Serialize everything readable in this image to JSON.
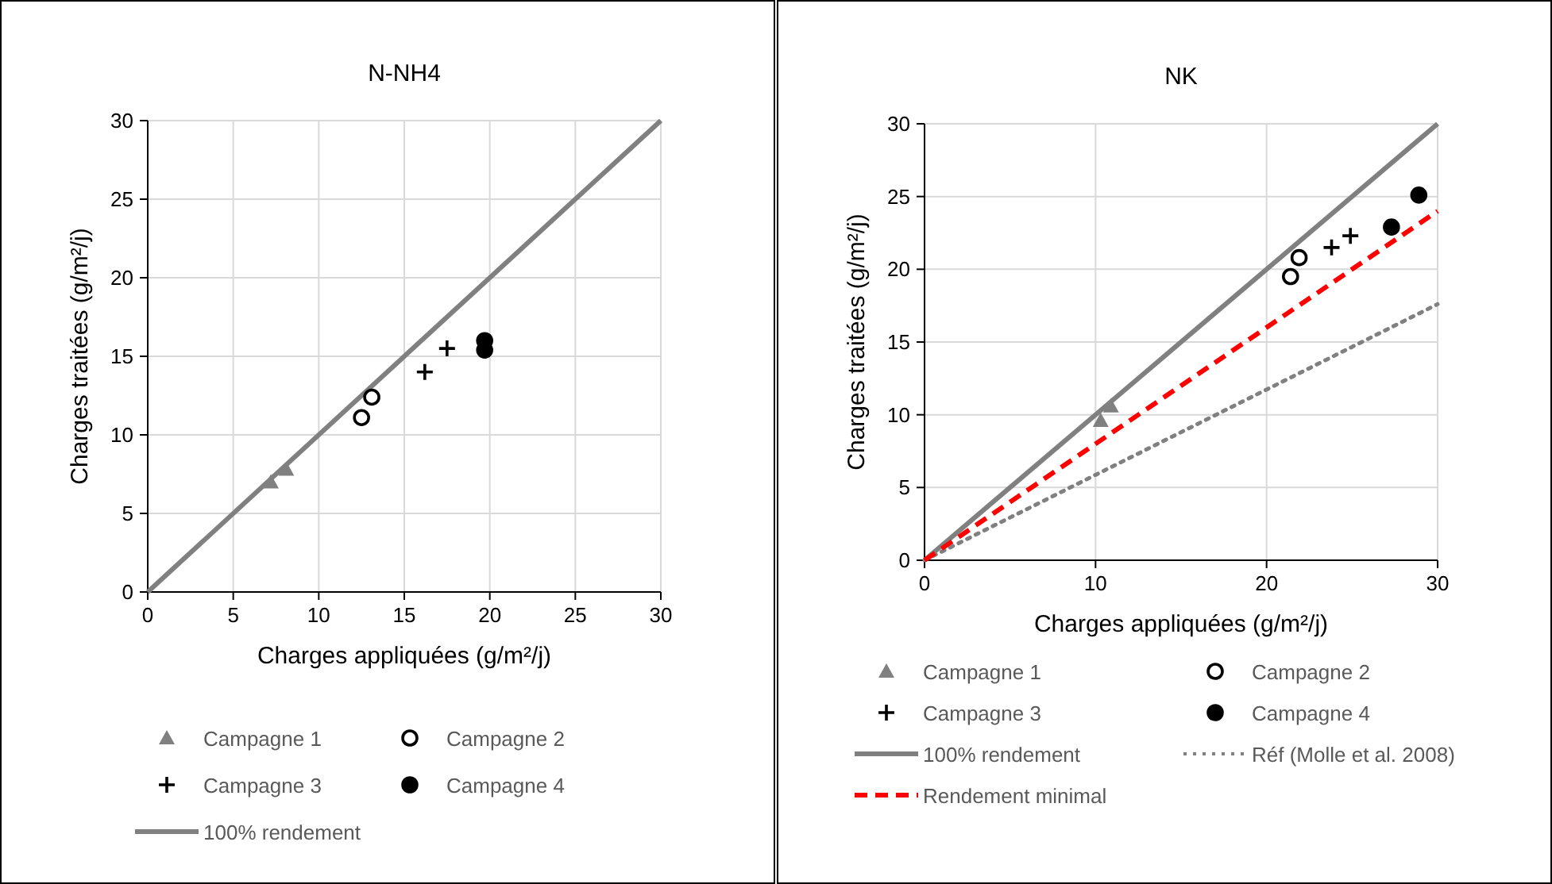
{
  "chart_data": [
    {
      "type": "scatter",
      "title": "N-NH4",
      "xlabel": "Charges appliquées (g/m²/j)",
      "ylabel": "Charges traitées (g/m²/j)",
      "xlim": [
        0,
        30
      ],
      "ylim": [
        0,
        30
      ],
      "xticks": [
        0,
        5,
        10,
        15,
        20,
        25,
        30
      ],
      "yticks": [
        0,
        5,
        10,
        15,
        20,
        25,
        30
      ],
      "grid": true,
      "legend": "bottom",
      "series": [
        {
          "name": "Campagne 1",
          "marker": "triangle",
          "color": "#808080",
          "x": [
            7.2,
            8.1
          ],
          "values": [
            7.0,
            7.8
          ]
        },
        {
          "name": "Campagne 2",
          "marker": "circle",
          "color": "#000000",
          "x": [
            12.5,
            13.1
          ],
          "values": [
            11.1,
            12.4
          ]
        },
        {
          "name": "Campagne 3",
          "marker": "cross",
          "color": "#000000",
          "x": [
            16.2,
            17.5
          ],
          "values": [
            14.0,
            15.5
          ]
        },
        {
          "name": "Campagne 4",
          "marker": "circle",
          "color": "#000000",
          "x": [
            19.7,
            19.7
          ],
          "values": [
            16.0,
            15.4
          ]
        },
        {
          "name": "100% rendement",
          "type": "line",
          "line_style": "solid",
          "color": "#808080",
          "x": [
            0,
            30
          ],
          "values": [
            0,
            30
          ]
        }
      ]
    },
    {
      "type": "scatter",
      "title": "NK",
      "xlabel": "Charges appliquées (g/m²/j)",
      "ylabel": "Charges traitées (g/m²/j)",
      "xlim": [
        0,
        30
      ],
      "ylim": [
        0,
        30
      ],
      "xticks": [
        0,
        10,
        20,
        30
      ],
      "yticks": [
        0,
        5,
        10,
        15,
        20,
        25,
        30
      ],
      "grid": true,
      "legend": "bottom",
      "series": [
        {
          "name": "Campagne 1",
          "marker": "triangle",
          "color": "#808080",
          "x": [
            10.3,
            10.9
          ],
          "values": [
            9.6,
            10.6
          ]
        },
        {
          "name": "Campagne 2",
          "marker": "circle",
          "color": "#000000",
          "x": [
            21.4,
            21.9
          ],
          "values": [
            19.5,
            20.8
          ]
        },
        {
          "name": "Campagne 3",
          "marker": "cross",
          "color": "#000000",
          "x": [
            23.8,
            24.9
          ],
          "values": [
            21.5,
            22.3
          ]
        },
        {
          "name": "Campagne 4",
          "marker": "circle",
          "color": "#000000",
          "x": [
            27.3,
            28.9
          ],
          "values": [
            22.9,
            25.1
          ]
        },
        {
          "name": "100% rendement",
          "type": "line",
          "line_style": "solid",
          "color": "#808080",
          "x": [
            0,
            30
          ],
          "values": [
            0,
            30
          ]
        },
        {
          "name": "Réf (Molle et al. 2008)",
          "type": "line",
          "line_style": "dotted",
          "color": "#808080",
          "x": [
            0,
            30
          ],
          "values": [
            0,
            17.6
          ]
        },
        {
          "name": "Rendement minimal",
          "type": "line",
          "line_style": "dashed",
          "color": "#ff0000",
          "x": [
            0,
            30
          ],
          "values": [
            0,
            24
          ]
        }
      ]
    }
  ]
}
